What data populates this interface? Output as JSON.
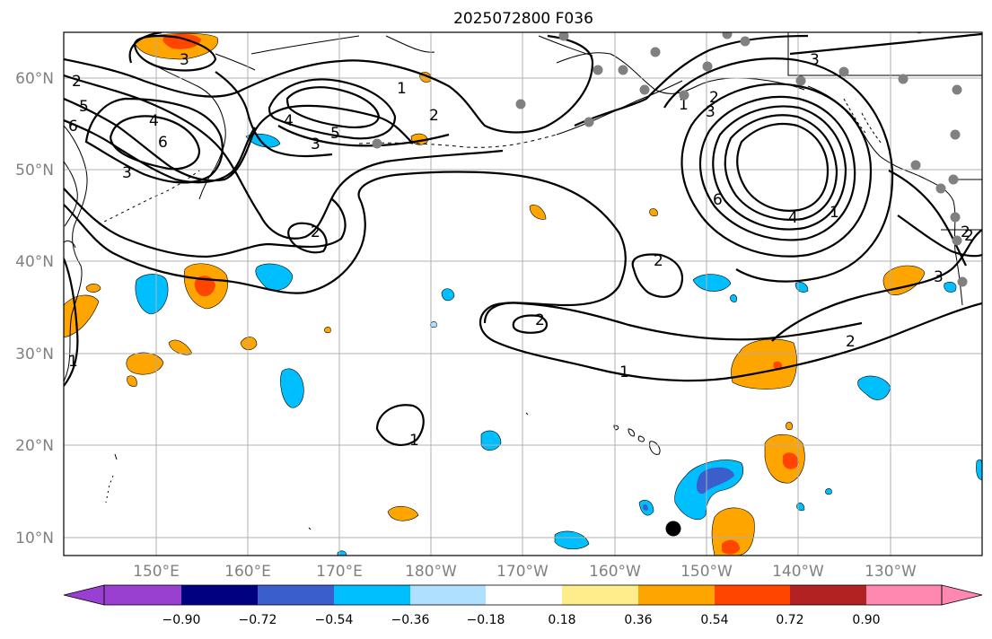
{
  "title": "2025072800 F036",
  "colors": {
    "purple": "#9a40d0",
    "navy": "#000080",
    "royal": "#3a5fcd",
    "deepsky": "#00bfff",
    "lightblue": "#b0e0ff",
    "white": "#ffffff",
    "lightyellow": "#ffec8b",
    "orange": "#ffa500",
    "orangered": "#ff4500",
    "firebrick": "#b22222",
    "pink": "#ff88b0",
    "grid": "#b0b0b0",
    "station_dot": "#808080"
  },
  "axes": {
    "lon_labels": [
      "150°E",
      "160°E",
      "170°E",
      "180°W",
      "170°W",
      "160°W",
      "150°W",
      "140°W",
      "130°W"
    ],
    "lat_labels": [
      "60°N",
      "50°N",
      "40°N",
      "30°N",
      "20°N",
      "10°N"
    ]
  },
  "colorbar": {
    "ticks": [
      "−0.90",
      "−0.72",
      "−0.54",
      "−0.36",
      "−0.18",
      "0.18",
      "0.36",
      "0.54",
      "0.72",
      "0.90"
    ]
  },
  "contour_labels": [
    "2",
    "5",
    "6",
    "4",
    "3",
    "6",
    "3",
    "4",
    "5",
    "3",
    "1",
    "2",
    "2",
    "1",
    "2",
    "2",
    "3",
    "2",
    "6",
    "4",
    "1",
    "2",
    "2",
    "1",
    "1",
    "3",
    "3",
    "2",
    "1"
  ]
}
